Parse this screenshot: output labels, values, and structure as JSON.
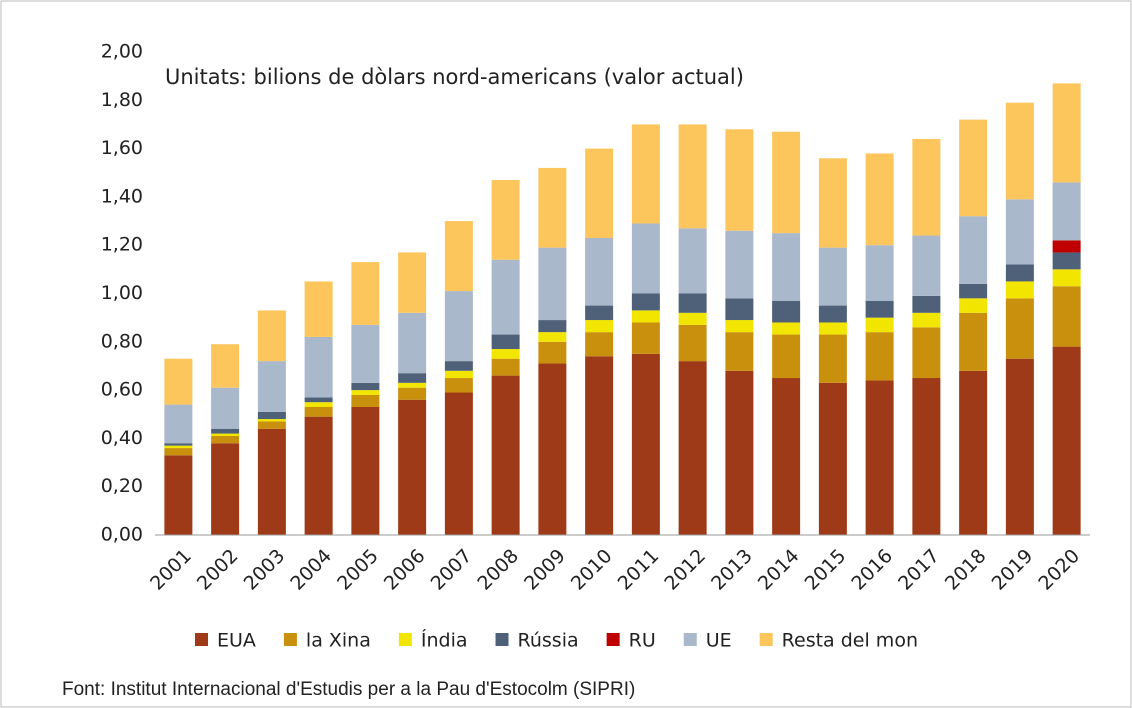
{
  "chart_data": {
    "type": "stacked_bar",
    "subtitle": "Unitats: bilions de dòlars nord-americans (valor actual)",
    "source": "Font: Institut Internacional d'Estudis per a la Pau d'Estocolm (SIPRI)",
    "categories": [
      "2001",
      "2002",
      "2003",
      "2004",
      "2005",
      "2006",
      "2007",
      "2008",
      "2009",
      "2010",
      "2011",
      "2012",
      "2013",
      "2014",
      "2015",
      "2016",
      "2017",
      "2018",
      "2019",
      "2020"
    ],
    "series": [
      {
        "name": "EUA",
        "color": "#9e3a17",
        "values": [
          0.33,
          0.38,
          0.44,
          0.49,
          0.53,
          0.56,
          0.59,
          0.66,
          0.71,
          0.74,
          0.75,
          0.72,
          0.68,
          0.65,
          0.63,
          0.64,
          0.65,
          0.68,
          0.73,
          0.78
        ]
      },
      {
        "name": "la Xina",
        "color": "#c9900e",
        "values": [
          0.03,
          0.03,
          0.03,
          0.04,
          0.05,
          0.05,
          0.06,
          0.07,
          0.09,
          0.1,
          0.13,
          0.15,
          0.16,
          0.18,
          0.2,
          0.2,
          0.21,
          0.24,
          0.25,
          0.25
        ]
      },
      {
        "name": "Índia",
        "color": "#f2e600",
        "values": [
          0.01,
          0.01,
          0.01,
          0.02,
          0.02,
          0.02,
          0.03,
          0.04,
          0.04,
          0.05,
          0.05,
          0.05,
          0.05,
          0.05,
          0.05,
          0.06,
          0.06,
          0.06,
          0.07,
          0.07
        ]
      },
      {
        "name": "Rússia",
        "color": "#4f6179",
        "values": [
          0.01,
          0.02,
          0.03,
          0.02,
          0.03,
          0.04,
          0.04,
          0.06,
          0.05,
          0.06,
          0.07,
          0.08,
          0.09,
          0.09,
          0.07,
          0.07,
          0.07,
          0.06,
          0.07,
          0.07
        ]
      },
      {
        "name": "RU",
        "color": "#c00000",
        "values": [
          0,
          0,
          0,
          0,
          0,
          0,
          0,
          0,
          0,
          0,
          0,
          0,
          0,
          0,
          0,
          0,
          0,
          0,
          0,
          0.05
        ]
      },
      {
        "name": "UE",
        "color": "#aab8cc",
        "values": [
          0.16,
          0.17,
          0.21,
          0.25,
          0.24,
          0.25,
          0.29,
          0.31,
          0.3,
          0.28,
          0.29,
          0.27,
          0.28,
          0.28,
          0.24,
          0.23,
          0.25,
          0.28,
          0.27,
          0.24
        ]
      },
      {
        "name": "Resta del mon",
        "color": "#fcc65c",
        "values": [
          0.19,
          0.18,
          0.21,
          0.23,
          0.26,
          0.25,
          0.29,
          0.33,
          0.33,
          0.37,
          0.41,
          0.43,
          0.42,
          0.42,
          0.37,
          0.38,
          0.4,
          0.4,
          0.4,
          0.41
        ]
      }
    ],
    "ylim": [
      0,
      2
    ],
    "yticks": [
      {
        "value": 0,
        "label": "0,00"
      },
      {
        "value": 0.2,
        "label": "0,20"
      },
      {
        "value": 0.4,
        "label": "0,40"
      },
      {
        "value": 0.6,
        "label": "0,60"
      },
      {
        "value": 0.8,
        "label": "0,80"
      },
      {
        "value": 1,
        "label": "1,00"
      },
      {
        "value": 1.2,
        "label": "1,20"
      },
      {
        "value": 1.4,
        "label": "1,40"
      },
      {
        "value": 1.6,
        "label": "1,60"
      },
      {
        "value": 1.8,
        "label": "1,80"
      },
      {
        "value": 2,
        "label": "2,00"
      }
    ],
    "grid": false
  }
}
